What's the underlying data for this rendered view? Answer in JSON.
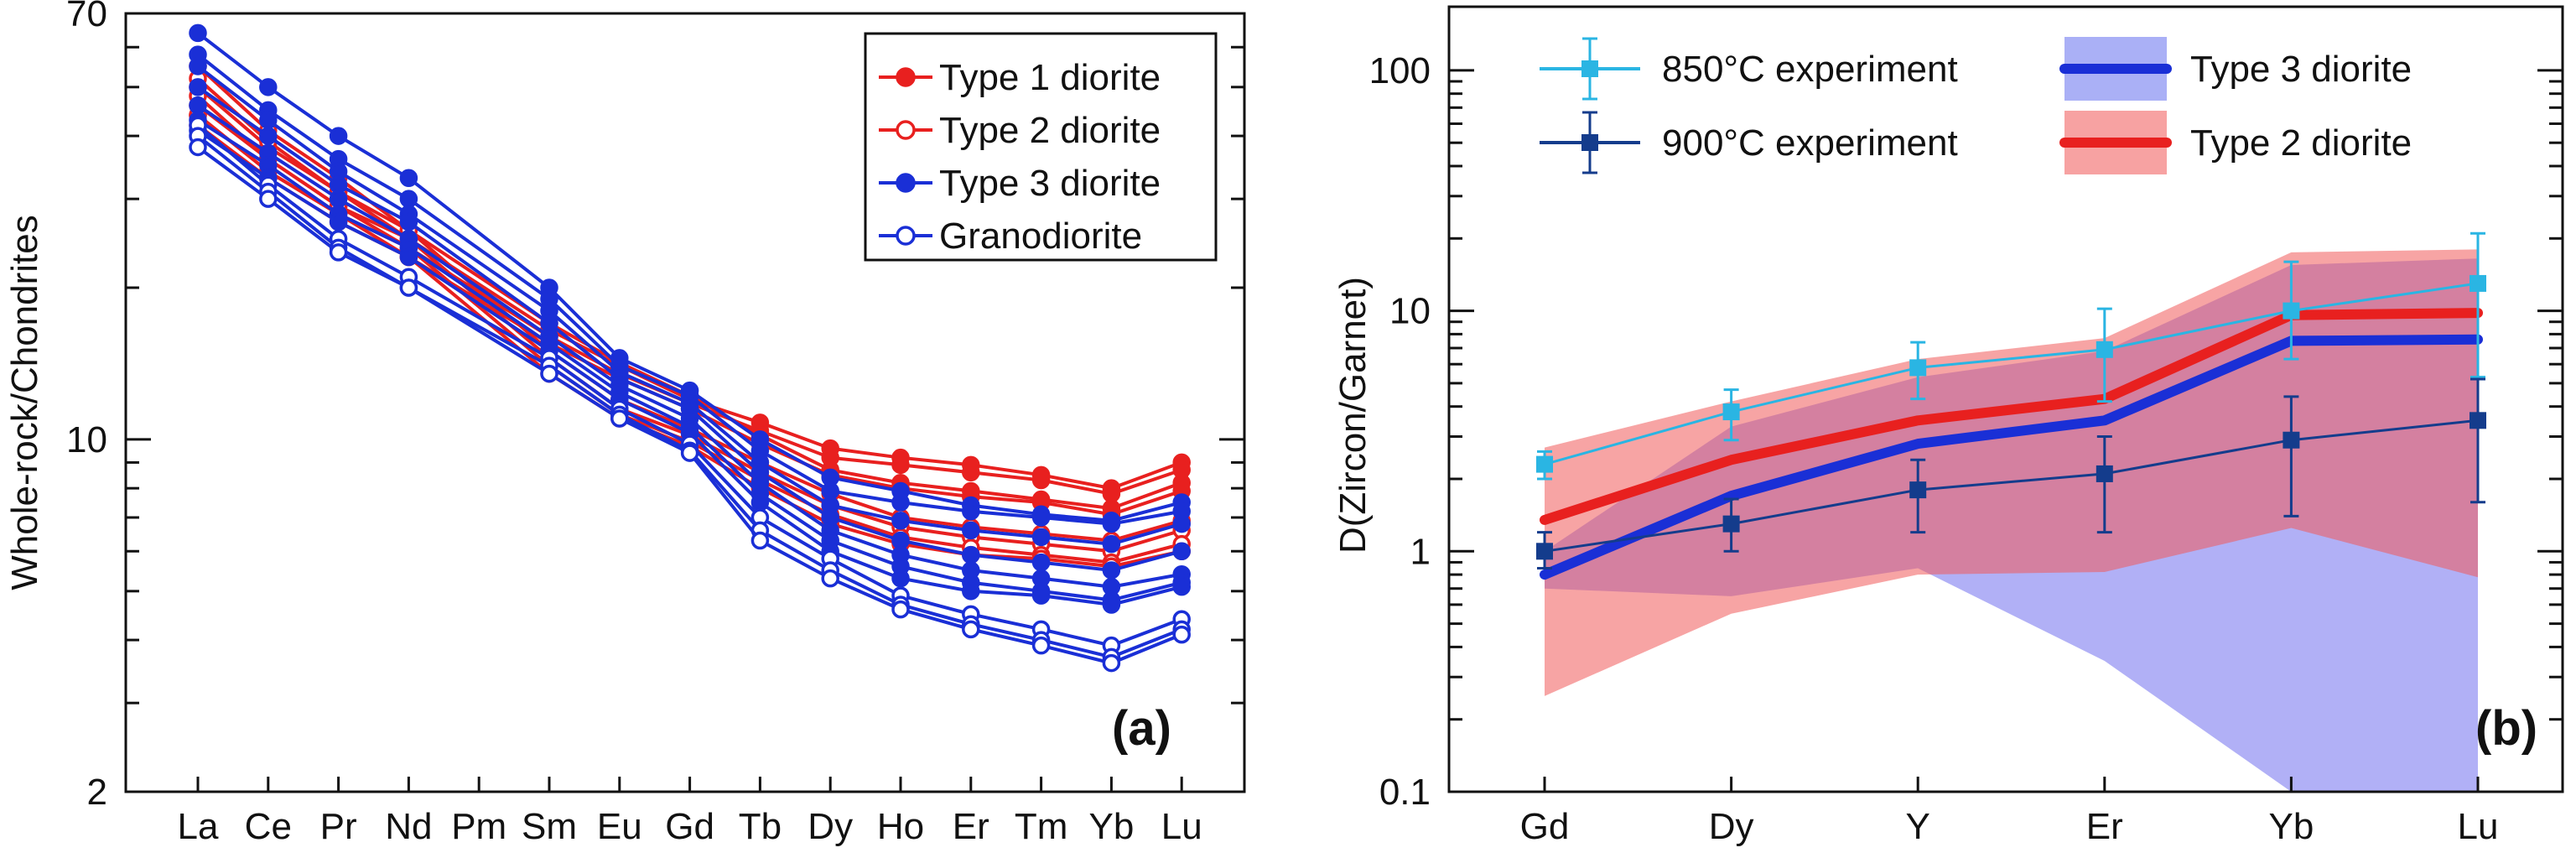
{
  "chart_data": [
    {
      "type": "line",
      "panel_label": "(a)",
      "ylabel": "Whole-rock/Chondrites",
      "xlabel": "",
      "yscale": "log",
      "ylim": [
        2,
        70
      ],
      "yticks": [
        "70",
        "10",
        "2"
      ],
      "ytick_values": [
        70,
        10,
        2
      ],
      "categories": [
        "La",
        "Ce",
        "Pr",
        "Nd",
        "Pm",
        "Sm",
        "Eu",
        "Gd",
        "Tb",
        "Dy",
        "Ho",
        "Er",
        "Tm",
        "Yb",
        "Lu"
      ],
      "legend": [
        {
          "name": "Type 1 diorite",
          "color": "#e8201f",
          "marker": "filled"
        },
        {
          "name": "Type 2 diorite",
          "color": "#e8201f",
          "marker": "open"
        },
        {
          "name": "Type 3 diorite",
          "color": "#1a2fd6",
          "marker": "filled"
        },
        {
          "name": "Granodiorite",
          "color": "#1a2fd6",
          "marker": "open"
        }
      ],
      "series": [
        {
          "group": "Type 1 diorite",
          "color": "#e8201f",
          "marker": "filled",
          "values": [
            46,
            36,
            29,
            25,
            null,
            16.5,
            14,
            12,
            10.8,
            9.6,
            9.2,
            8.9,
            8.5,
            8.0,
            9.0
          ]
        },
        {
          "group": "Type 1 diorite",
          "color": "#e8201f",
          "marker": "filled",
          "values": [
            44,
            34,
            28,
            24,
            null,
            16,
            13.5,
            11.8,
            10.4,
            9.2,
            8.9,
            8.6,
            8.3,
            7.8,
            8.7
          ]
        },
        {
          "group": "Type 1 diorite",
          "color": "#e8201f",
          "marker": "filled",
          "values": [
            50,
            38,
            31,
            26,
            null,
            17,
            14.2,
            12.2,
            10.2,
            8.7,
            8.2,
            7.9,
            7.6,
            7.3,
            8.2
          ]
        },
        {
          "group": "Type 1 diorite",
          "color": "#e8201f",
          "marker": "filled",
          "values": [
            42,
            33,
            27,
            23,
            null,
            15.5,
            13.2,
            11.5,
            9.8,
            8.5,
            8.0,
            7.7,
            7.5,
            7.1,
            7.9
          ]
        },
        {
          "group": "Type 2 diorite",
          "color": "#e8201f",
          "marker": "open",
          "values": [
            55,
            41,
            33,
            26,
            null,
            15,
            12,
            10.5,
            9.0,
            7.8,
            7.0,
            6.7,
            6.5,
            6.3,
            6.9
          ]
        },
        {
          "group": "Type 2 diorite",
          "color": "#e8201f",
          "marker": "open",
          "values": [
            52,
            39,
            31,
            25,
            null,
            14.5,
            11.5,
            10.2,
            8.6,
            7.4,
            6.7,
            6.4,
            6.2,
            6.0,
            6.6
          ]
        },
        {
          "group": "Type 2 diorite",
          "color": "#e8201f",
          "marker": "open",
          "values": [
            48,
            36,
            29,
            24,
            null,
            14,
            11.2,
            9.9,
            8.3,
            7.1,
            6.4,
            6.1,
            5.9,
            5.7,
            6.2
          ]
        },
        {
          "group": "Type 2 diorite",
          "color": "#e8201f",
          "marker": "open",
          "values": [
            44,
            34,
            28,
            23,
            null,
            13.5,
            11.0,
            9.7,
            8.0,
            6.8,
            6.2,
            5.9,
            5.8,
            5.6,
            6.0
          ]
        },
        {
          "group": "Type 3 diorite",
          "color": "#1a2fd6",
          "marker": "filled",
          "values": [
            64,
            50,
            40,
            33,
            null,
            20,
            14.5,
            12.5,
            10,
            8.4,
            7.9,
            7.4,
            7.1,
            6.9,
            7.5
          ]
        },
        {
          "group": "Type 3 diorite",
          "color": "#1a2fd6",
          "marker": "filled",
          "values": [
            58,
            45,
            36,
            30,
            null,
            19,
            14,
            12.2,
            9.5,
            7.9,
            7.5,
            7.2,
            7.0,
            6.8,
            7.2
          ]
        },
        {
          "group": "Type 3 diorite",
          "color": "#1a2fd6",
          "marker": "filled",
          "values": [
            55,
            43,
            34,
            28,
            null,
            18,
            13.6,
            11.8,
            9.0,
            7.4,
            6.9,
            6.6,
            6.4,
            6.2,
            6.8
          ]
        },
        {
          "group": "Type 3 diorite",
          "color": "#1a2fd6",
          "marker": "filled",
          "values": [
            50,
            40,
            32,
            27,
            null,
            17,
            13.2,
            11.5,
            8.6,
            7.0,
            6.3,
            5.9,
            5.7,
            5.5,
            6.0
          ]
        },
        {
          "group": "Type 3 diorite",
          "color": "#1a2fd6",
          "marker": "filled",
          "values": [
            46,
            37,
            30,
            25,
            null,
            16,
            12.8,
            11.0,
            8.2,
            6.6,
            5.9,
            5.5,
            5.3,
            5.1,
            5.4
          ]
        },
        {
          "group": "Type 3 diorite",
          "color": "#1a2fd6",
          "marker": "filled",
          "values": [
            43,
            35,
            28,
            24,
            null,
            15.5,
            12.4,
            10.6,
            7.8,
            6.3,
            5.6,
            5.2,
            5.0,
            4.8,
            5.2
          ]
        },
        {
          "group": "Type 3 diorite",
          "color": "#1a2fd6",
          "marker": "filled",
          "values": [
            41,
            33,
            27,
            23,
            null,
            15,
            12.0,
            10.3,
            7.5,
            6.0,
            5.3,
            5.0,
            4.9,
            4.7,
            5.1
          ]
        },
        {
          "group": "Granodiorite",
          "color": "#1a2fd6",
          "marker": "open",
          "values": [
            42,
            32,
            25,
            21,
            null,
            14.5,
            11.5,
            9.8,
            7.0,
            5.8,
            4.9,
            4.5,
            4.2,
            3.9,
            4.4
          ]
        },
        {
          "group": "Granodiorite",
          "color": "#1a2fd6",
          "marker": "open",
          "values": [
            40,
            31,
            24,
            20,
            null,
            14,
            11.2,
            9.5,
            6.6,
            5.5,
            4.7,
            4.3,
            4.0,
            3.7,
            4.2
          ]
        },
        {
          "group": "Granodiorite",
          "color": "#1a2fd6",
          "marker": "open",
          "values": [
            38,
            30,
            23.5,
            20,
            null,
            13.5,
            11.0,
            9.4,
            6.3,
            5.3,
            4.6,
            4.2,
            3.9,
            3.6,
            4.1
          ]
        }
      ]
    },
    {
      "type": "line",
      "panel_label": "(b)",
      "ylabel": "D(Zircon/Garnet)",
      "xlabel": "",
      "yscale": "log",
      "ylim": [
        0.1,
        180
      ],
      "yticks": [
        "100",
        "10",
        "1",
        "0.1"
      ],
      "ytick_values": [
        100,
        10,
        1,
        0.1
      ],
      "categories": [
        "Gd",
        "Dy",
        "Y",
        "Er",
        "Yb",
        "Lu"
      ],
      "legend": [
        {
          "name": "850°C  experiment",
          "color": "#2ab5e3",
          "kind": "line-marker"
        },
        {
          "name": "900°C  experiment",
          "color": "#143c8c",
          "kind": "line-marker"
        },
        {
          "name": "Type 3 diorite",
          "color": "#1a2fd6",
          "kind": "line-band",
          "band_color": "#aab0f6"
        },
        {
          "name": "Type 2 diorite",
          "color": "#e8201f",
          "kind": "line-band",
          "band_color": "#f7a2a2"
        }
      ],
      "bands": [
        {
          "name": "Type 3 diorite",
          "fill": "#7d7cf0",
          "opacity": 0.6,
          "upper": [
            1.0,
            3.3,
            5.3,
            6.8,
            15.5,
            16.5
          ],
          "lower": [
            0.7,
            0.65,
            0.85,
            0.35,
            0.1,
            0.1
          ]
        },
        {
          "name": "Type 2 diorite",
          "fill": "#f15a5a",
          "opacity": 0.55,
          "upper": [
            2.7,
            4.2,
            6.3,
            7.7,
            17.5,
            18
          ],
          "lower": [
            0.25,
            0.55,
            0.8,
            0.82,
            1.25,
            0.78
          ]
        }
      ],
      "series": [
        {
          "name": "Type 3 diorite",
          "color": "#1a2fd6",
          "width": 12,
          "values": [
            0.8,
            1.7,
            2.8,
            3.5,
            7.5,
            7.6
          ]
        },
        {
          "name": "Type 2 diorite",
          "color": "#e8201f",
          "width": 12,
          "values": [
            1.35,
            2.4,
            3.5,
            4.3,
            9.6,
            9.8
          ]
        },
        {
          "name": "850°C  experiment",
          "color": "#2ab5e3",
          "width": 3,
          "marker": "square",
          "values": [
            2.3,
            3.8,
            5.8,
            6.9,
            10,
            13
          ],
          "err_low": [
            2.0,
            2.9,
            4.3,
            4.2,
            6.3,
            5.3
          ],
          "err_high": [
            2.6,
            4.7,
            7.4,
            10.2,
            16,
            21
          ]
        },
        {
          "name": "900°C  experiment",
          "color": "#143c8c",
          "width": 3,
          "marker": "square",
          "values": [
            1.0,
            1.3,
            1.8,
            2.1,
            2.9,
            3.5
          ],
          "err_low": [
            0.85,
            1.0,
            1.2,
            1.2,
            1.4,
            1.6
          ],
          "err_high": [
            1.2,
            1.65,
            2.4,
            3.0,
            4.4,
            5.2
          ]
        }
      ]
    }
  ]
}
